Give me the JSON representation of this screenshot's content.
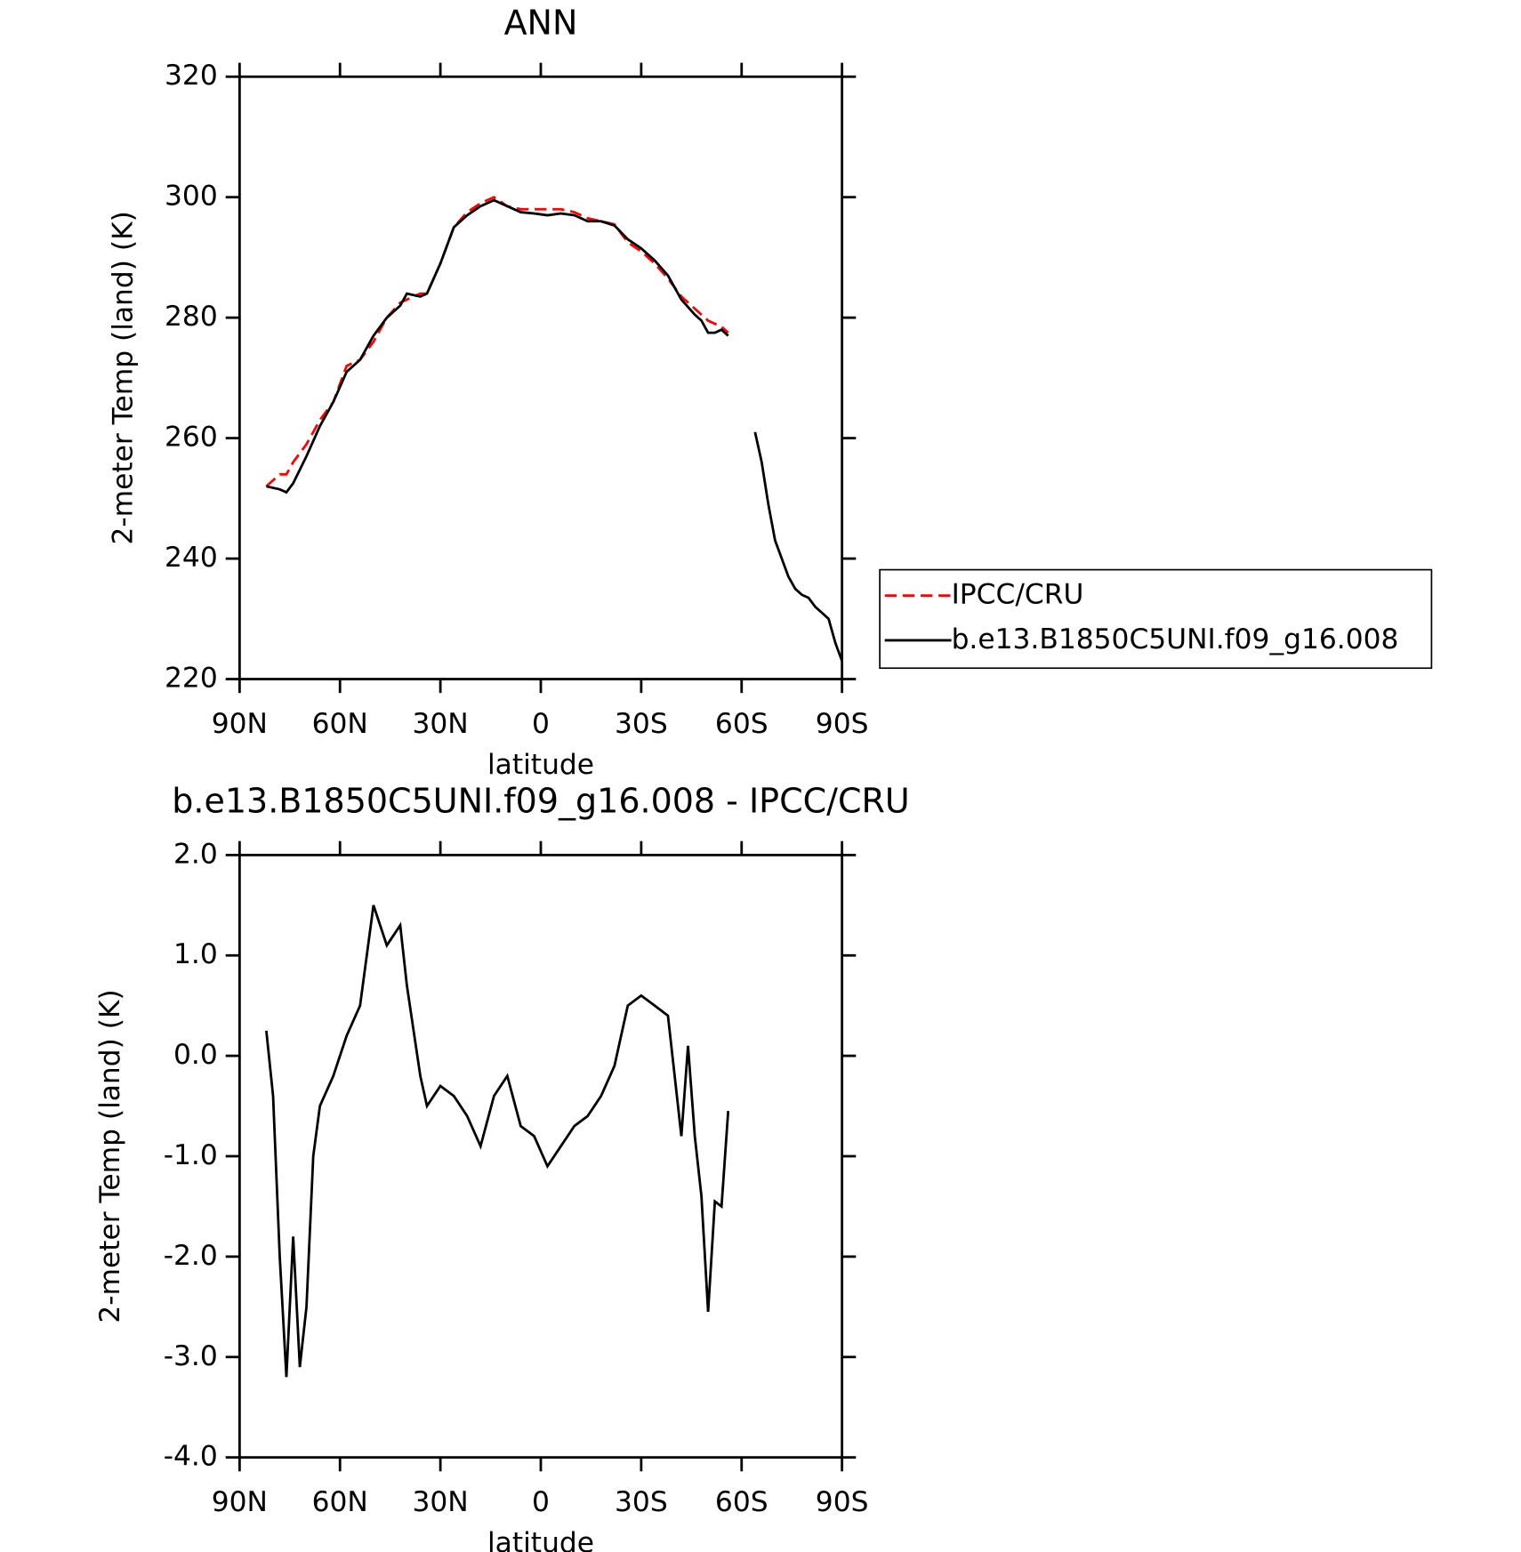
{
  "chart_data": [
    {
      "type": "line",
      "title": "ANN",
      "xlabel": "latitude",
      "ylabel": "2-meter Temp (land) (K)",
      "x": [
        82,
        78,
        76,
        74,
        70,
        66,
        62,
        58,
        54,
        50,
        46,
        42,
        40,
        36,
        34,
        30,
        26,
        22,
        18,
        14,
        10,
        6,
        2,
        -2,
        -6,
        -10,
        -14,
        -18,
        -22,
        -26,
        -30,
        -34,
        -38,
        -42,
        -46,
        -48,
        -50,
        -52,
        -54,
        -56,
        -58,
        -62,
        -64,
        -66,
        -68,
        -70,
        -72,
        -74,
        -76,
        -78,
        -80,
        -82,
        -84,
        -86,
        -88,
        -90
      ],
      "series": [
        {
          "name": "IPCC/CRU",
          "color": "#ff0000",
          "dash": true,
          "values": [
            252,
            254,
            254,
            256,
            259,
            263,
            266,
            272,
            273,
            276,
            280,
            282.5,
            283,
            284,
            284,
            289,
            295,
            297.5,
            299,
            300,
            298.5,
            298,
            298,
            298,
            298,
            297.5,
            296.5,
            296,
            295.5,
            292.5,
            291,
            289,
            286.5,
            283.5,
            281.5,
            280.5,
            279.5,
            279,
            278.5,
            277.5,
            null,
            null,
            null,
            null,
            null,
            null,
            null,
            null,
            null,
            null,
            null,
            null,
            null,
            null,
            null,
            null
          ]
        },
        {
          "name": "b.e13.B1850C5UNI.f09_g16.008",
          "color": "#000000",
          "dash": false,
          "values": [
            252,
            251.5,
            251,
            252.5,
            257,
            262,
            266,
            271,
            273,
            277,
            280,
            282,
            284,
            283.5,
            284,
            289,
            295,
            297,
            298.5,
            299.5,
            298.5,
            297.5,
            297.3,
            297,
            297.3,
            297,
            296,
            296,
            295.3,
            293,
            291.5,
            289.5,
            287,
            283,
            280.5,
            279.5,
            277.5,
            277.5,
            278,
            277,
            null,
            null,
            261,
            256,
            249,
            243,
            240,
            237,
            235,
            234,
            233.5,
            232,
            231,
            230,
            226,
            223
          ]
        }
      ],
      "xlim": [
        90,
        -90
      ],
      "xticks": [
        {
          "value": 90,
          "label": "90N"
        },
        {
          "value": 60,
          "label": "60N"
        },
        {
          "value": 30,
          "label": "30N"
        },
        0,
        {
          "value": -30,
          "label": "30S"
        },
        {
          "value": -60,
          "label": "60S"
        },
        {
          "value": -90,
          "label": "90S"
        }
      ],
      "ylim": [
        220,
        320
      ],
      "yticks": [
        220,
        240,
        260,
        280,
        300,
        320
      ],
      "legend": "right"
    },
    {
      "type": "line",
      "title": "b.e13.B1850C5UNI.f09_g16.008 - IPCC/CRU",
      "xlabel": "latitude",
      "ylabel": "2-meter Temp (land) (K)",
      "x": [
        82,
        80,
        78,
        76,
        74,
        72,
        70,
        68,
        66,
        62,
        58,
        54,
        50,
        46,
        42,
        40,
        36,
        34,
        30,
        26,
        22,
        18,
        14,
        10,
        6,
        2,
        -2,
        -6,
        -10,
        -14,
        -18,
        -22,
        -26,
        -30,
        -34,
        -38,
        -42,
        -44,
        -46,
        -48,
        -50,
        -52,
        -54,
        -56
      ],
      "series": [
        {
          "color": "#000000",
          "dash": false,
          "values": [
            0.25,
            -0.4,
            -2.0,
            -3.2,
            -1.8,
            -3.1,
            -2.5,
            -1.0,
            -0.5,
            -0.2,
            0.2,
            0.5,
            1.5,
            1.1,
            1.3,
            0.7,
            -0.2,
            -0.5,
            -0.3,
            -0.4,
            -0.6,
            -0.9,
            -0.4,
            -0.2,
            -0.7,
            -0.8,
            -1.1,
            -0.9,
            -0.7,
            -0.6,
            -0.4,
            -0.1,
            0.5,
            0.6,
            0.5,
            0.4,
            -0.8,
            0.1,
            -0.8,
            -1.4,
            -2.55,
            -1.45,
            -1.5,
            -0.55
          ]
        }
      ],
      "xlim": [
        90,
        -90
      ],
      "xticks": [
        {
          "value": 90,
          "label": "90N"
        },
        {
          "value": 60,
          "label": "60N"
        },
        {
          "value": 30,
          "label": "30N"
        },
        0,
        {
          "value": -30,
          "label": "30S"
        },
        {
          "value": -60,
          "label": "60S"
        },
        {
          "value": -90,
          "label": "90S"
        }
      ],
      "ylim": [
        -4,
        2
      ],
      "yticks": [
        {
          "value": -4,
          "label": "-4.0"
        },
        {
          "value": -3,
          "label": "-3.0"
        },
        {
          "value": -2,
          "label": "-2.0"
        },
        {
          "value": -1,
          "label": "-1.0"
        },
        {
          "value": 0,
          "label": "0.0"
        },
        {
          "value": 1,
          "label": "1.0"
        },
        {
          "value": 2,
          "label": "2.0"
        }
      ]
    }
  ]
}
